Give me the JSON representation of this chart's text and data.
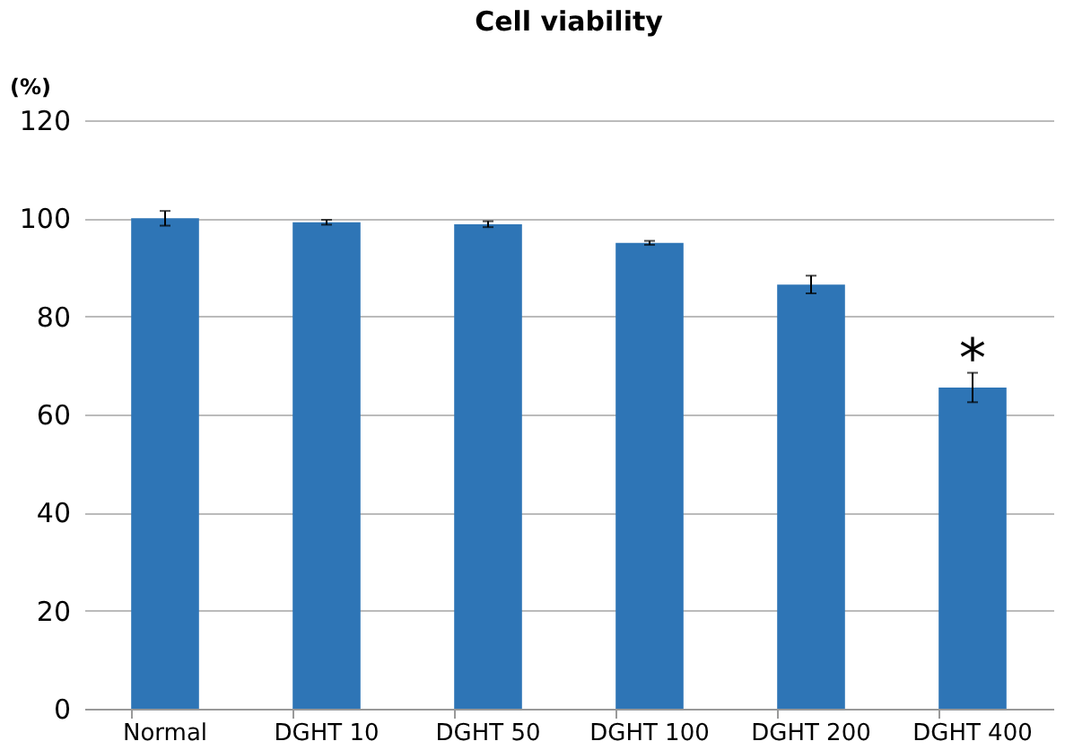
{
  "chart_data": {
    "type": "bar",
    "title": "Cell viability",
    "ylabel": "(%)",
    "categories": [
      "Normal",
      "DGHT 10",
      "DGHT 50",
      "DGHT 100",
      "DGHT 200",
      "DGHT 400"
    ],
    "values": [
      100,
      99.2,
      98.8,
      95,
      86.5,
      65.5
    ],
    "errors": [
      1.5,
      0.5,
      0.6,
      0.4,
      1.8,
      3
    ],
    "color": "#2e75b6",
    "ylim": [
      0,
      120
    ],
    "yticks": [
      0,
      20,
      40,
      60,
      80,
      100,
      120
    ],
    "grid": "y",
    "annotations": [
      "*"
    ]
  }
}
